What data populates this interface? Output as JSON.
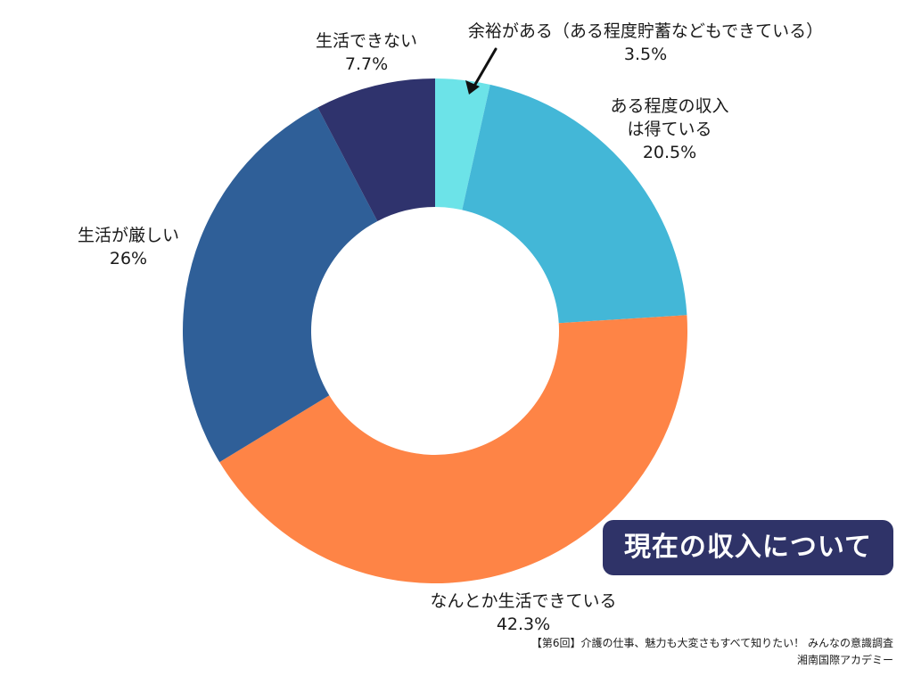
{
  "chart_data": {
    "type": "pie",
    "style": "donut",
    "title": "現在の収入について",
    "start": "12 o'clock",
    "direction": "clockwise",
    "slices": [
      {
        "label": "余裕がある（ある程度貯蓄などもできている）",
        "value": 3.5,
        "value_label": "3.5%",
        "color": "#6ce3e8"
      },
      {
        "label": "ある程度の収入は得ている",
        "label_lines": [
          "ある程度の収入",
          "は得ている"
        ],
        "value": 20.5,
        "value_label": "20.5%",
        "color": "#43b7d7"
      },
      {
        "label": "なんとか生活できている",
        "value": 42.3,
        "value_label": "42.3%",
        "color": "#fe8446"
      },
      {
        "label": "生活が厳しい",
        "value": 26,
        "value_label": "26%",
        "color": "#2f5f98"
      },
      {
        "label": "生活できない",
        "value": 7.7,
        "value_label": "7.7%",
        "color": "#2f336d"
      }
    ]
  },
  "footer": {
    "line1": "【第6回】介護の仕事、魅力も大変さもすべて知りたい！ みんなの意識調査",
    "line2": "湘南国際アカデミー"
  }
}
